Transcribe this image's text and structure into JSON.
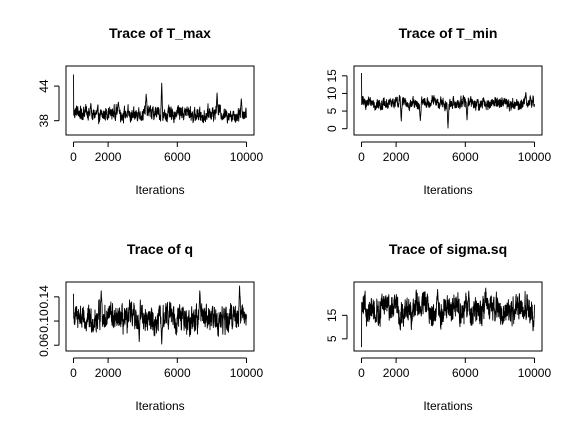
{
  "chart_data": [
    {
      "type": "line",
      "title": "Trace of T_max",
      "xlabel": "Iterations",
      "ylabel": "",
      "xlim": [
        0,
        10000
      ],
      "ylim": [
        36,
        47
      ],
      "x_ticks": [
        0,
        2000,
        6000,
        10000
      ],
      "y_ticks": [
        38,
        44
      ],
      "start_value": 46,
      "typical_level": 39.2,
      "noise_amplitude": 0.9,
      "spikes": [
        {
          "x": 5100,
          "y": 44.5
        },
        {
          "x": 4200,
          "y": 42.6
        },
        {
          "x": 8300,
          "y": 42.8
        },
        {
          "x": 9700,
          "y": 41.8
        },
        {
          "x": 2600,
          "y": 41.2
        },
        {
          "x": 1000,
          "y": 41.0
        }
      ]
    },
    {
      "type": "line",
      "title": "Trace of T_min",
      "xlabel": "Iterations",
      "ylabel": "",
      "xlim": [
        0,
        10000
      ],
      "ylim": [
        -1,
        17
      ],
      "x_ticks": [
        0,
        2000,
        6000,
        10000
      ],
      "y_ticks": [
        0,
        5,
        10,
        15
      ],
      "start_value": 15.8,
      "typical_level": 7.2,
      "noise_amplitude": 1.2,
      "spikes": [
        {
          "x": 5000,
          "y": 0.2
        },
        {
          "x": 2300,
          "y": 2.2
        },
        {
          "x": 3400,
          "y": 2.3
        },
        {
          "x": 6100,
          "y": 2.5
        },
        {
          "x": 9500,
          "y": 10.3
        }
      ]
    },
    {
      "type": "line",
      "title": "Trace of q",
      "xlabel": "Iterations",
      "ylabel": "",
      "xlim": [
        0,
        10000
      ],
      "ylim": [
        0.055,
        0.16
      ],
      "x_ticks": [
        0,
        2000,
        6000,
        10000
      ],
      "y_ticks": [
        0.06,
        0.1,
        0.14
      ],
      "y_tick_labels": [
        "0.06",
        "0.10",
        "0.14"
      ],
      "start_value": 0.145,
      "typical_level": 0.105,
      "noise_amplitude": 0.016,
      "spikes": [
        {
          "x": 9600,
          "y": 0.158
        },
        {
          "x": 1600,
          "y": 0.15
        },
        {
          "x": 5100,
          "y": 0.062
        },
        {
          "x": 3800,
          "y": 0.066
        },
        {
          "x": 7300,
          "y": 0.15
        }
      ]
    },
    {
      "type": "line",
      "title": "Trace of sigma.sq",
      "xlabel": "Iterations",
      "ylabel": "",
      "xlim": [
        0,
        10000
      ],
      "ylim": [
        1,
        28
      ],
      "x_ticks": [
        0,
        2000,
        6000,
        10000
      ],
      "y_ticks": [
        5,
        15
      ],
      "start_value": 1.5,
      "typical_level": 17.5,
      "noise_amplitude": 4.2,
      "spikes": [
        {
          "x": 4400,
          "y": 26.0
        },
        {
          "x": 6200,
          "y": 25.3
        },
        {
          "x": 800,
          "y": 12.0
        }
      ]
    }
  ]
}
